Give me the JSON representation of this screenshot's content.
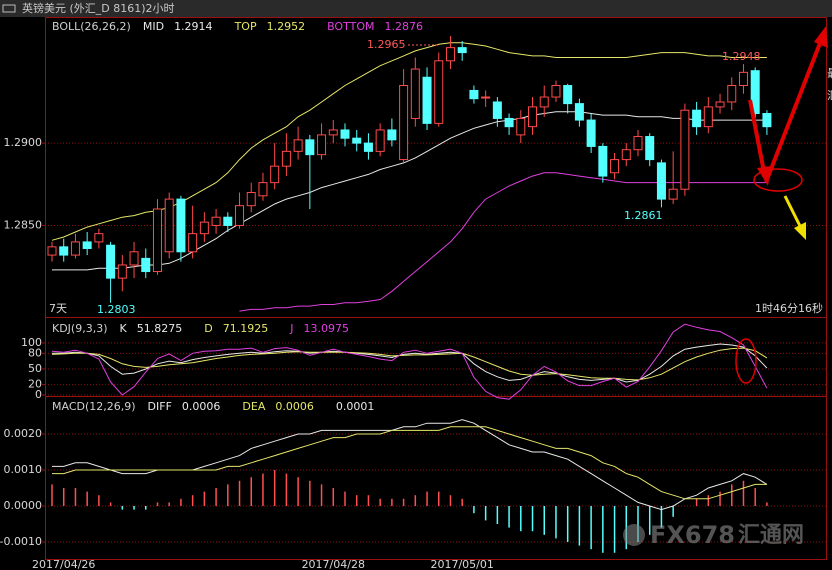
{
  "window_title": "英镑美元 (外汇_D 8161)2小时",
  "status": {
    "period": "7天",
    "timer": "1时46分16秒"
  },
  "watermark": {
    "logo": "FX678",
    "text": "汇通网"
  },
  "side_labels": [
    "最",
    "汇"
  ],
  "chart_data": [
    {
      "type": "candlestick",
      "title": "BOLL(26,26,2)",
      "categories": [
        null,
        "2017/04/26",
        null,
        null,
        null,
        null,
        null,
        null,
        null,
        null,
        null,
        null,
        null,
        null,
        null,
        null,
        null,
        null,
        null,
        null,
        null,
        null,
        null,
        null,
        "2017/04/28",
        null,
        null,
        null,
        null,
        null,
        null,
        null,
        null,
        null,
        null,
        "2017/05/01",
        null,
        null,
        null,
        null,
        null,
        null,
        null,
        null,
        null,
        null,
        null,
        null,
        null,
        null,
        null,
        null,
        null,
        null,
        null,
        null,
        null,
        null,
        null,
        null,
        null,
        null
      ],
      "open": [
        1.2832,
        1.2837,
        1.2832,
        1.284,
        1.284,
        1.2838,
        1.2818,
        1.2826,
        1.283,
        1.2822,
        1.2834,
        1.2866,
        1.2834,
        1.2845,
        1.285,
        1.2855,
        1.285,
        1.2862,
        1.2868,
        1.2876,
        1.2886,
        1.2895,
        1.2902,
        1.2893,
        1.2905,
        1.2908,
        1.2903,
        1.29,
        1.2895,
        1.2908,
        1.289,
        1.2915,
        1.294,
        1.2912,
        1.295,
        1.2958,
        1.2932,
        1.2928,
        1.2925,
        1.2915,
        1.2905,
        1.291,
        1.2922,
        1.2928,
        1.2935,
        1.2924,
        1.2914,
        1.2898,
        1.2882,
        1.289,
        1.2896,
        1.2904,
        1.2888,
        1.2866,
        1.2872,
        1.292,
        1.291,
        1.2922,
        1.2925,
        1.2935,
        1.2944,
        1.2918
      ],
      "high": [
        1.284,
        1.2842,
        1.2845,
        1.2846,
        1.2848,
        1.284,
        1.2832,
        1.284,
        1.2836,
        1.2866,
        1.287,
        1.2868,
        1.2862,
        1.2858,
        1.286,
        1.2858,
        1.287,
        1.2876,
        1.2882,
        1.29,
        1.2906,
        1.291,
        1.2905,
        1.2912,
        1.2914,
        1.2912,
        1.2908,
        1.2906,
        1.2912,
        1.2915,
        1.2945,
        1.2952,
        1.2946,
        1.2955,
        1.2965,
        1.2962,
        1.2935,
        1.2932,
        1.2928,
        1.2918,
        1.292,
        1.2928,
        1.2935,
        1.2938,
        1.2936,
        1.2927,
        1.2918,
        1.29,
        1.2894,
        1.29,
        1.2908,
        1.2906,
        1.289,
        1.2895,
        1.2924,
        1.2925,
        1.2928,
        1.293,
        1.294,
        1.2948,
        1.2946,
        1.292
      ],
      "low": [
        1.2828,
        1.2828,
        1.283,
        1.2832,
        1.2836,
        1.2803,
        1.281,
        1.2818,
        1.2818,
        1.282,
        1.283,
        1.2828,
        1.283,
        1.284,
        1.2845,
        1.2846,
        1.2848,
        1.2858,
        1.2865,
        1.2872,
        1.288,
        1.289,
        1.286,
        1.289,
        1.29,
        1.2898,
        1.2895,
        1.289,
        1.2892,
        1.2898,
        1.2888,
        1.291,
        1.2908,
        1.291,
        1.2945,
        1.295,
        1.2924,
        1.2922,
        1.291,
        1.2905,
        1.29,
        1.2905,
        1.2916,
        1.2925,
        1.2918,
        1.291,
        1.2894,
        1.2876,
        1.2878,
        1.2886,
        1.2892,
        1.2886,
        1.2861,
        1.2863,
        1.2868,
        1.2905,
        1.2906,
        1.2918,
        1.292,
        1.293,
        1.2915,
        1.2905
      ],
      "close": [
        1.2837,
        1.2832,
        1.284,
        1.2836,
        1.2845,
        1.2818,
        1.2826,
        1.2834,
        1.2822,
        1.286,
        1.2866,
        1.2834,
        1.2845,
        1.2852,
        1.2855,
        1.285,
        1.2862,
        1.287,
        1.2876,
        1.2886,
        1.2895,
        1.2902,
        1.2893,
        1.2905,
        1.2908,
        1.2903,
        1.29,
        1.2895,
        1.2908,
        1.2902,
        1.2935,
        1.2945,
        1.2912,
        1.295,
        1.2958,
        1.2955,
        1.2927,
        1.2928,
        1.2915,
        1.291,
        1.2915,
        1.2922,
        1.2928,
        1.2935,
        1.2924,
        1.2914,
        1.2898,
        1.288,
        1.289,
        1.2896,
        1.2904,
        1.289,
        1.2866,
        1.2872,
        1.292,
        1.291,
        1.2922,
        1.2925,
        1.2935,
        1.2943,
        1.2918,
        1.291
      ],
      "up_color": "#ff4a4a",
      "down_color": "#54ffff",
      "series": [
        {
          "name": "MID",
          "color": "#e8e8e8",
          "values": [
            1.2823,
            1.2823,
            1.2823,
            1.2823,
            1.2824,
            1.2824,
            1.2824,
            1.2825,
            1.2826,
            1.2826,
            1.2827,
            1.283,
            1.2834,
            1.2838,
            1.2842,
            1.2847,
            1.2851,
            1.2855,
            1.2859,
            1.2863,
            1.2866,
            1.2868,
            1.287,
            1.2873,
            1.2875,
            1.2877,
            1.2879,
            1.2881,
            1.2884,
            1.2886,
            1.2888,
            1.2891,
            1.2895,
            1.2899,
            1.2903,
            1.2906,
            1.2909,
            1.2911,
            1.2913,
            1.2914,
            1.2915,
            1.2917,
            1.2918,
            1.2919,
            1.2919,
            1.2919,
            1.2918,
            1.2917,
            1.2917,
            1.2917,
            1.2916,
            1.2916,
            1.2916,
            1.2915,
            1.2915,
            1.2914,
            1.2914,
            1.2914,
            1.2914,
            1.2914,
            1.2914,
            1.2914
          ]
        },
        {
          "name": "TOP",
          "color": "#e6e66a",
          "values": [
            1.2841,
            1.2843,
            1.2846,
            1.2849,
            1.2851,
            1.2853,
            1.2855,
            1.2856,
            1.2858,
            1.2859,
            1.2861,
            1.2864,
            1.2868,
            1.2872,
            1.2876,
            1.2882,
            1.289,
            1.2897,
            1.2902,
            1.2906,
            1.291,
            1.2916,
            1.292,
            1.2925,
            1.293,
            1.2935,
            1.2939,
            1.2943,
            1.2947,
            1.295,
            1.2953,
            1.2956,
            1.2958,
            1.296,
            1.2961,
            1.2961,
            1.296,
            1.2959,
            1.2957,
            1.2955,
            1.2954,
            1.2953,
            1.2953,
            1.2952,
            1.2952,
            1.2952,
            1.2952,
            1.2952,
            1.2952,
            1.2952,
            1.2953,
            1.2954,
            1.2955,
            1.2955,
            1.2955,
            1.2954,
            1.2953,
            1.2953,
            1.2952,
            1.2952,
            1.2952,
            1.2952
          ]
        },
        {
          "name": "BOTTOM",
          "color": "#e040e0",
          "values": [
            null,
            null,
            null,
            null,
            null,
            null,
            null,
            null,
            null,
            null,
            null,
            null,
            null,
            null,
            null,
            null,
            1.2798,
            1.2799,
            1.2799,
            1.28,
            1.28,
            1.2801,
            1.2801,
            1.2802,
            1.2802,
            1.2803,
            1.2803,
            1.2804,
            1.2805,
            1.281,
            1.2816,
            1.2822,
            1.2828,
            1.2834,
            1.284,
            1.2848,
            1.2858,
            1.2866,
            1.287,
            1.2874,
            1.2877,
            1.288,
            1.2882,
            1.2882,
            1.2881,
            1.288,
            1.2879,
            1.2878,
            1.2877,
            1.2876,
            1.2876,
            1.2876,
            1.2876,
            1.2876,
            1.2876,
            1.2876,
            1.2876,
            1.2876,
            1.2876,
            1.2876,
            1.2876,
            1.2876
          ]
        }
      ],
      "ylim": [
        1.2795,
        1.2976
      ],
      "yticks": [
        {
          "value": 1.285,
          "label": "1.2850"
        },
        {
          "value": 1.29,
          "label": "1.2900"
        }
      ],
      "grid": true,
      "annotations": [
        "1.2965",
        "1.2948",
        "1.2861",
        "1.2803"
      ]
    },
    {
      "type": "line",
      "title": "KDJ(9,3,3)",
      "series": [
        {
          "name": "K",
          "color": "#e8e8e8",
          "values": [
            80,
            80,
            82,
            80,
            75,
            55,
            40,
            42,
            50,
            60,
            65,
            62,
            68,
            72,
            75,
            78,
            80,
            82,
            80,
            83,
            85,
            84,
            80,
            82,
            84,
            82,
            80,
            78,
            75,
            72,
            78,
            80,
            78,
            80,
            82,
            80,
            60,
            45,
            35,
            28,
            30,
            38,
            45,
            42,
            35,
            30,
            28,
            30,
            32,
            25,
            28,
            40,
            55,
            75,
            88,
            92,
            95,
            98,
            96,
            92,
            75,
            51.8275
          ]
        },
        {
          "name": "D",
          "color": "#e6e66a",
          "values": [
            78,
            79,
            80,
            80,
            78,
            70,
            60,
            55,
            53,
            55,
            58,
            60,
            62,
            66,
            70,
            73,
            76,
            78,
            79,
            80,
            82,
            83,
            82,
            82,
            82,
            82,
            81,
            80,
            78,
            75,
            76,
            77,
            77,
            78,
            79,
            80,
            73,
            64,
            55,
            46,
            40,
            38,
            40,
            41,
            39,
            36,
            33,
            32,
            32,
            30,
            29,
            33,
            40,
            52,
            64,
            73,
            80,
            86,
            89,
            90,
            85,
            71.1925
          ]
        },
        {
          "name": "J",
          "color": "#e040e0",
          "values": [
            84,
            82,
            86,
            80,
            69,
            25,
            0,
            16,
            44,
            70,
            79,
            66,
            80,
            84,
            85,
            88,
            88,
            90,
            82,
            89,
            91,
            86,
            76,
            82,
            88,
            82,
            78,
            74,
            69,
            66,
            82,
            86,
            80,
            84,
            88,
            80,
            34,
            7,
            -5,
            -8,
            10,
            38,
            55,
            44,
            27,
            18,
            18,
            26,
            32,
            15,
            26,
            54,
            85,
            121,
            136,
            130,
            125,
            122,
            110,
            96,
            55,
            13.0975
          ]
        }
      ],
      "ylim": [
        0,
        144
      ],
      "yticks": [
        0,
        20,
        50,
        80,
        100
      ],
      "grid": true
    },
    {
      "type": "macd",
      "title": "MACD(12,26,9)",
      "series": [
        {
          "name": "DIFF",
          "color": "#e8e8e8",
          "values": [
            0.0011,
            0.0011,
            0.0012,
            0.0012,
            0.0011,
            0.001,
            0.0009,
            0.0009,
            0.0009,
            0.001,
            0.001,
            0.001,
            0.001,
            0.0011,
            0.0012,
            0.0013,
            0.0014,
            0.0016,
            0.0017,
            0.0018,
            0.0019,
            0.002,
            0.002,
            0.0021,
            0.0021,
            0.0021,
            0.0021,
            0.0021,
            0.0021,
            0.0021,
            0.0022,
            0.0022,
            0.0023,
            0.0023,
            0.0023,
            0.0024,
            0.0023,
            0.0021,
            0.0019,
            0.0017,
            0.0016,
            0.0015,
            0.0015,
            0.0014,
            0.0013,
            0.0011,
            0.0009,
            0.0007,
            0.0005,
            0.0003,
            0.0001,
            0.0,
            -0.0001,
            0.0,
            0.0002,
            0.0003,
            0.0005,
            0.0006,
            0.0007,
            0.0009,
            0.0008,
            0.0006
          ]
        },
        {
          "name": "DEA",
          "color": "#e6e66a",
          "values": [
            0.0009,
            0.0009,
            0.001,
            0.001,
            0.001,
            0.001,
            0.001,
            0.001,
            0.001,
            0.001,
            0.001,
            0.001,
            0.001,
            0.001,
            0.001,
            0.0011,
            0.0011,
            0.0012,
            0.0013,
            0.0014,
            0.0015,
            0.0016,
            0.0017,
            0.0018,
            0.0019,
            0.0019,
            0.002,
            0.002,
            0.002,
            0.0021,
            0.0021,
            0.0021,
            0.0021,
            0.0021,
            0.0022,
            0.0022,
            0.0022,
            0.0022,
            0.0021,
            0.002,
            0.0019,
            0.0018,
            0.0017,
            0.0016,
            0.0016,
            0.0015,
            0.0014,
            0.0012,
            0.0011,
            0.0009,
            0.0008,
            0.0006,
            0.0004,
            0.0003,
            0.0002,
            0.0002,
            0.0002,
            0.0003,
            0.0004,
            0.0005,
            0.0006,
            0.0006
          ]
        }
      ],
      "bars": {
        "up_color": "#ff5050",
        "down_color": "#54ffff",
        "values": [
          0.0006,
          0.0005,
          0.0005,
          0.0004,
          0.0003,
          0.0001,
          -0.0001,
          -0.0001,
          -0.0001,
          0.0001,
          0.0001,
          0.0002,
          0.0003,
          0.0004,
          0.0005,
          0.0006,
          0.0007,
          0.0008,
          0.0009,
          0.001,
          0.0009,
          0.0008,
          0.0007,
          0.0006,
          0.0005,
          0.0004,
          0.0003,
          0.0003,
          0.0002,
          0.0002,
          0.0002,
          0.0003,
          0.0004,
          0.0004,
          0.0003,
          0.0002,
          -0.0002,
          -0.0004,
          -0.0005,
          -0.0006,
          -0.0007,
          -0.0007,
          -0.0008,
          -0.0009,
          -0.001,
          -0.0011,
          -0.0012,
          -0.0013,
          -0.0013,
          -0.0012,
          -0.001,
          -0.0008,
          -0.0006,
          -0.0003,
          0.0,
          0.0002,
          0.0003,
          0.0004,
          0.0006,
          0.0007,
          0.0005,
          0.0001
        ]
      },
      "ylim": [
        -0.0015,
        0.003
      ],
      "yticks": [
        {
          "value": -0.001,
          "label": "-0.0010"
        },
        {
          "value": 0,
          "label": "0.0000"
        },
        {
          "value": 0.001,
          "label": "0.0010"
        },
        {
          "value": 0.002,
          "label": "0.0020"
        }
      ],
      "grid": true
    }
  ]
}
